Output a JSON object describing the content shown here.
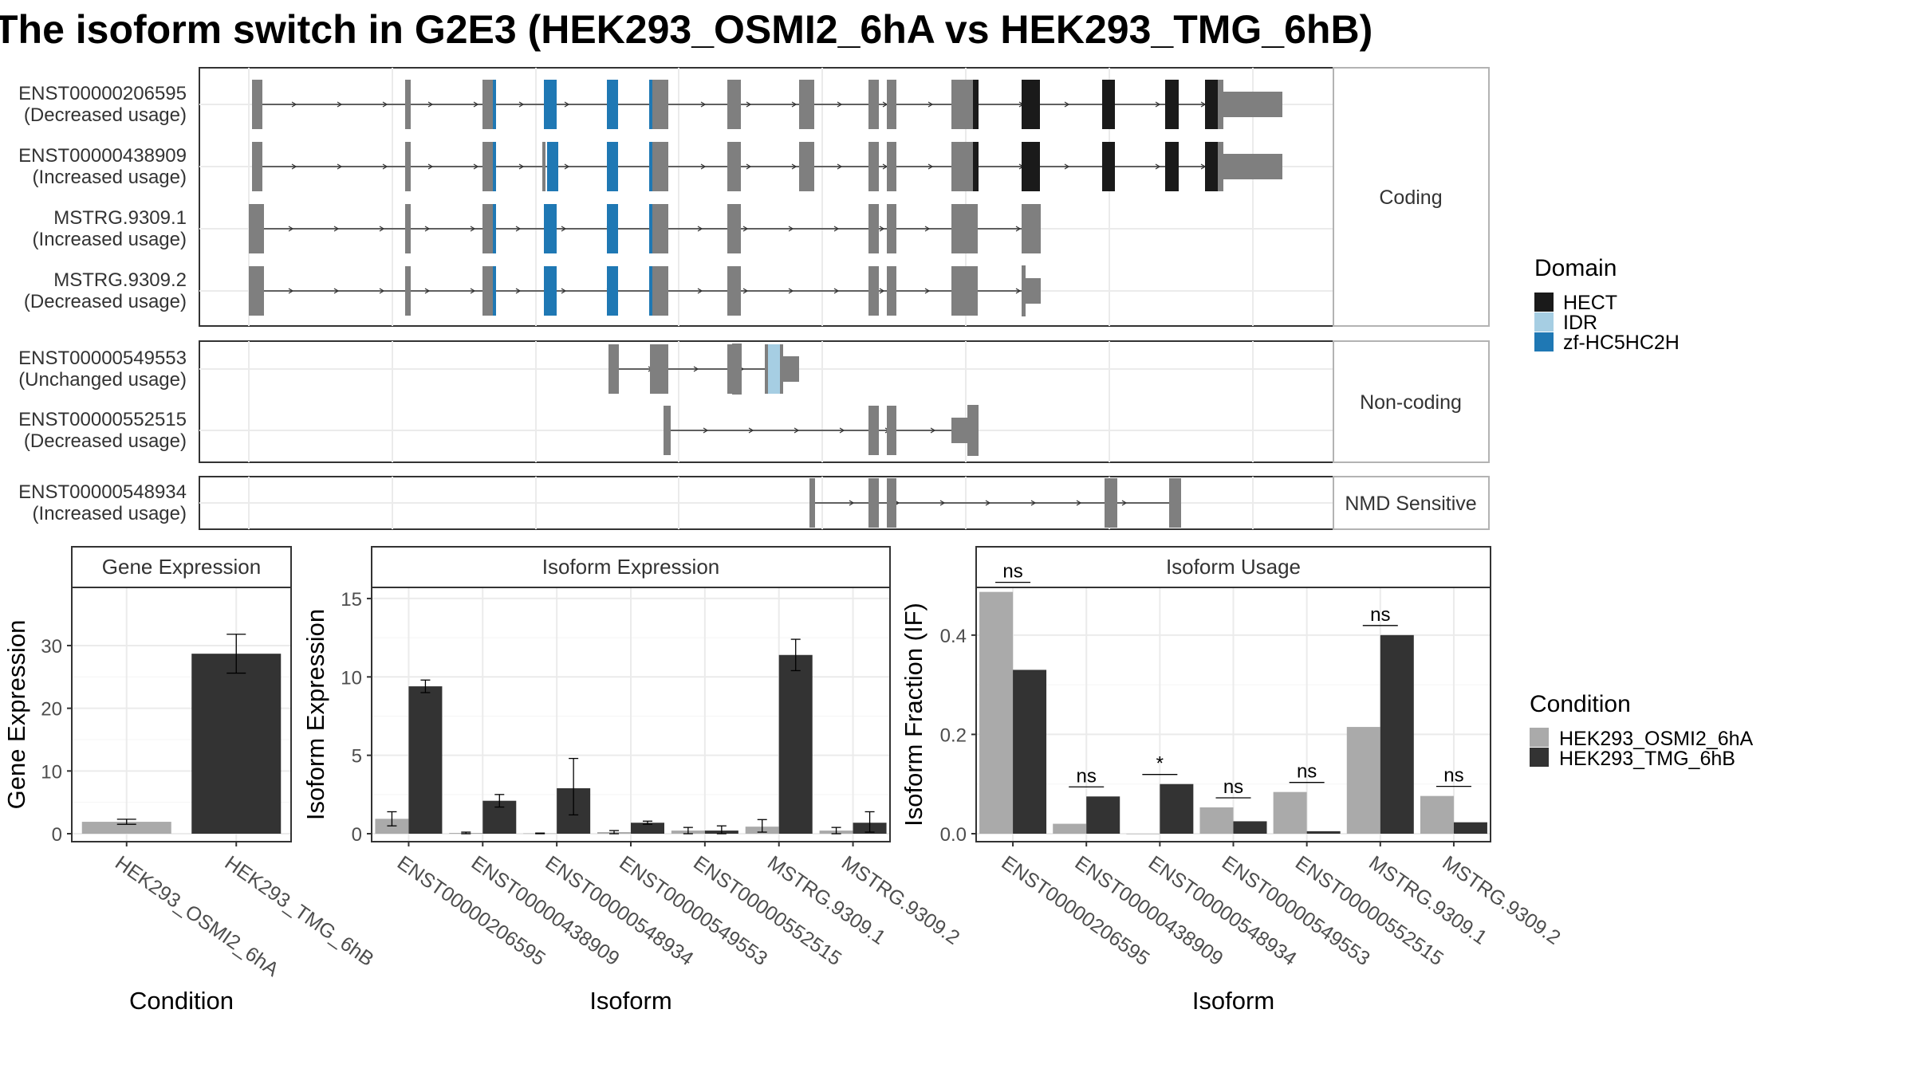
{
  "title": "The isoform switch in G2E3 (HEK293_OSMI2_6hA vs HEK293_TMG_6hB)",
  "legend_domain": {
    "title": "Domain",
    "items": [
      {
        "label": "HECT",
        "color": "#1a1a1a"
      },
      {
        "label": "IDR",
        "color": "#a6cee3"
      },
      {
        "label": "zf-HC5HC2H",
        "color": "#1f78b4"
      }
    ]
  },
  "legend_condition": {
    "title": "Condition",
    "items": [
      {
        "label": "HEK293_OSMI2_6hA",
        "color": "#aaaaaa"
      },
      {
        "label": "HEK293_TMG_6hB",
        "color": "#333333"
      }
    ]
  },
  "structure": {
    "panels": [
      {
        "label": "Coding",
        "rows": [
          {
            "id": "ENST00000206595",
            "usage": "(Decreased usage)"
          },
          {
            "id": "ENST00000438909",
            "usage": "(Increased usage)"
          },
          {
            "id": "MSTRG.9309.1",
            "usage": "(Increased usage)"
          },
          {
            "id": "MSTRG.9309.2",
            "usage": "(Decreased usage)"
          }
        ]
      },
      {
        "label": "Non-coding",
        "rows": [
          {
            "id": "ENST00000549553",
            "usage": "(Unchanged usage)"
          },
          {
            "id": "ENST00000552515",
            "usage": "(Decreased usage)"
          }
        ]
      },
      {
        "label": "NMD Sensitive",
        "rows": [
          {
            "id": "ENST00000548934",
            "usage": "(Increased usage)"
          }
        ]
      }
    ]
  },
  "chart_data": [
    {
      "type": "bar",
      "title": "Gene Expression",
      "xlabel": "Condition",
      "ylabel": "Gene Expression",
      "ylim": [
        0,
        38
      ],
      "yticks": [
        0,
        10,
        20,
        30
      ],
      "categories": [
        "HEK293_OSMI2_6hA",
        "HEK293_TMG_6hB"
      ],
      "values": [
        1.9,
        28.7
      ],
      "error_low": [
        1.5,
        25.6
      ],
      "error_high": [
        2.3,
        31.8
      ]
    },
    {
      "type": "bar",
      "title": "Isoform Expression",
      "xlabel": "Isoform",
      "ylabel": "Isoform Expression",
      "ylim": [
        0,
        15.2
      ],
      "yticks": [
        0,
        5,
        10,
        15
      ],
      "categories": [
        "ENST00000206595",
        "ENST00000438909",
        "ENST00000548934",
        "ENST00000549553",
        "ENST00000552515",
        "MSTRG.9309.1",
        "MSTRG.9309.2"
      ],
      "series": [
        {
          "name": "HEK293_OSMI2_6hA",
          "values": [
            0.95,
            0.05,
            0.02,
            0.1,
            0.2,
            0.45,
            0.2
          ],
          "error_low": [
            0.5,
            0.0,
            0.0,
            0.0,
            0.0,
            0.1,
            0.0
          ],
          "error_high": [
            1.4,
            0.1,
            0.04,
            0.2,
            0.4,
            0.9,
            0.4
          ]
        },
        {
          "name": "HEK293_TMG_6hB",
          "values": [
            9.4,
            2.1,
            2.9,
            0.7,
            0.2,
            11.4,
            0.7
          ],
          "error_low": [
            9.0,
            1.7,
            1.2,
            0.6,
            0.0,
            10.4,
            0.1
          ],
          "error_high": [
            9.8,
            2.5,
            4.8,
            0.8,
            0.5,
            12.4,
            1.4
          ]
        }
      ]
    },
    {
      "type": "bar",
      "title": "Isoform Usage",
      "xlabel": "Isoform",
      "ylabel": "Isoform Fraction (IF)",
      "ylim": [
        0,
        0.48
      ],
      "yticks": [
        0.0,
        0.2,
        0.4
      ],
      "ytick_labels": [
        "0.0",
        "0.2",
        "0.4"
      ],
      "categories": [
        "ENST00000206595",
        "ENST00000438909",
        "ENST00000548934",
        "ENST00000549553",
        "ENST00000552515",
        "MSTRG.9309.1",
        "MSTRG.9309.2"
      ],
      "series": [
        {
          "name": "HEK293_OSMI2_6hA",
          "values": [
            0.487,
            0.02,
            0.0,
            0.053,
            0.084,
            0.215,
            0.076
          ]
        },
        {
          "name": "HEK293_TMG_6hB",
          "values": [
            0.33,
            0.075,
            0.1,
            0.025,
            0.005,
            0.4,
            0.023
          ]
        }
      ],
      "significance": [
        "ns",
        "ns",
        "*",
        "ns",
        "ns",
        "ns",
        "ns"
      ]
    }
  ]
}
